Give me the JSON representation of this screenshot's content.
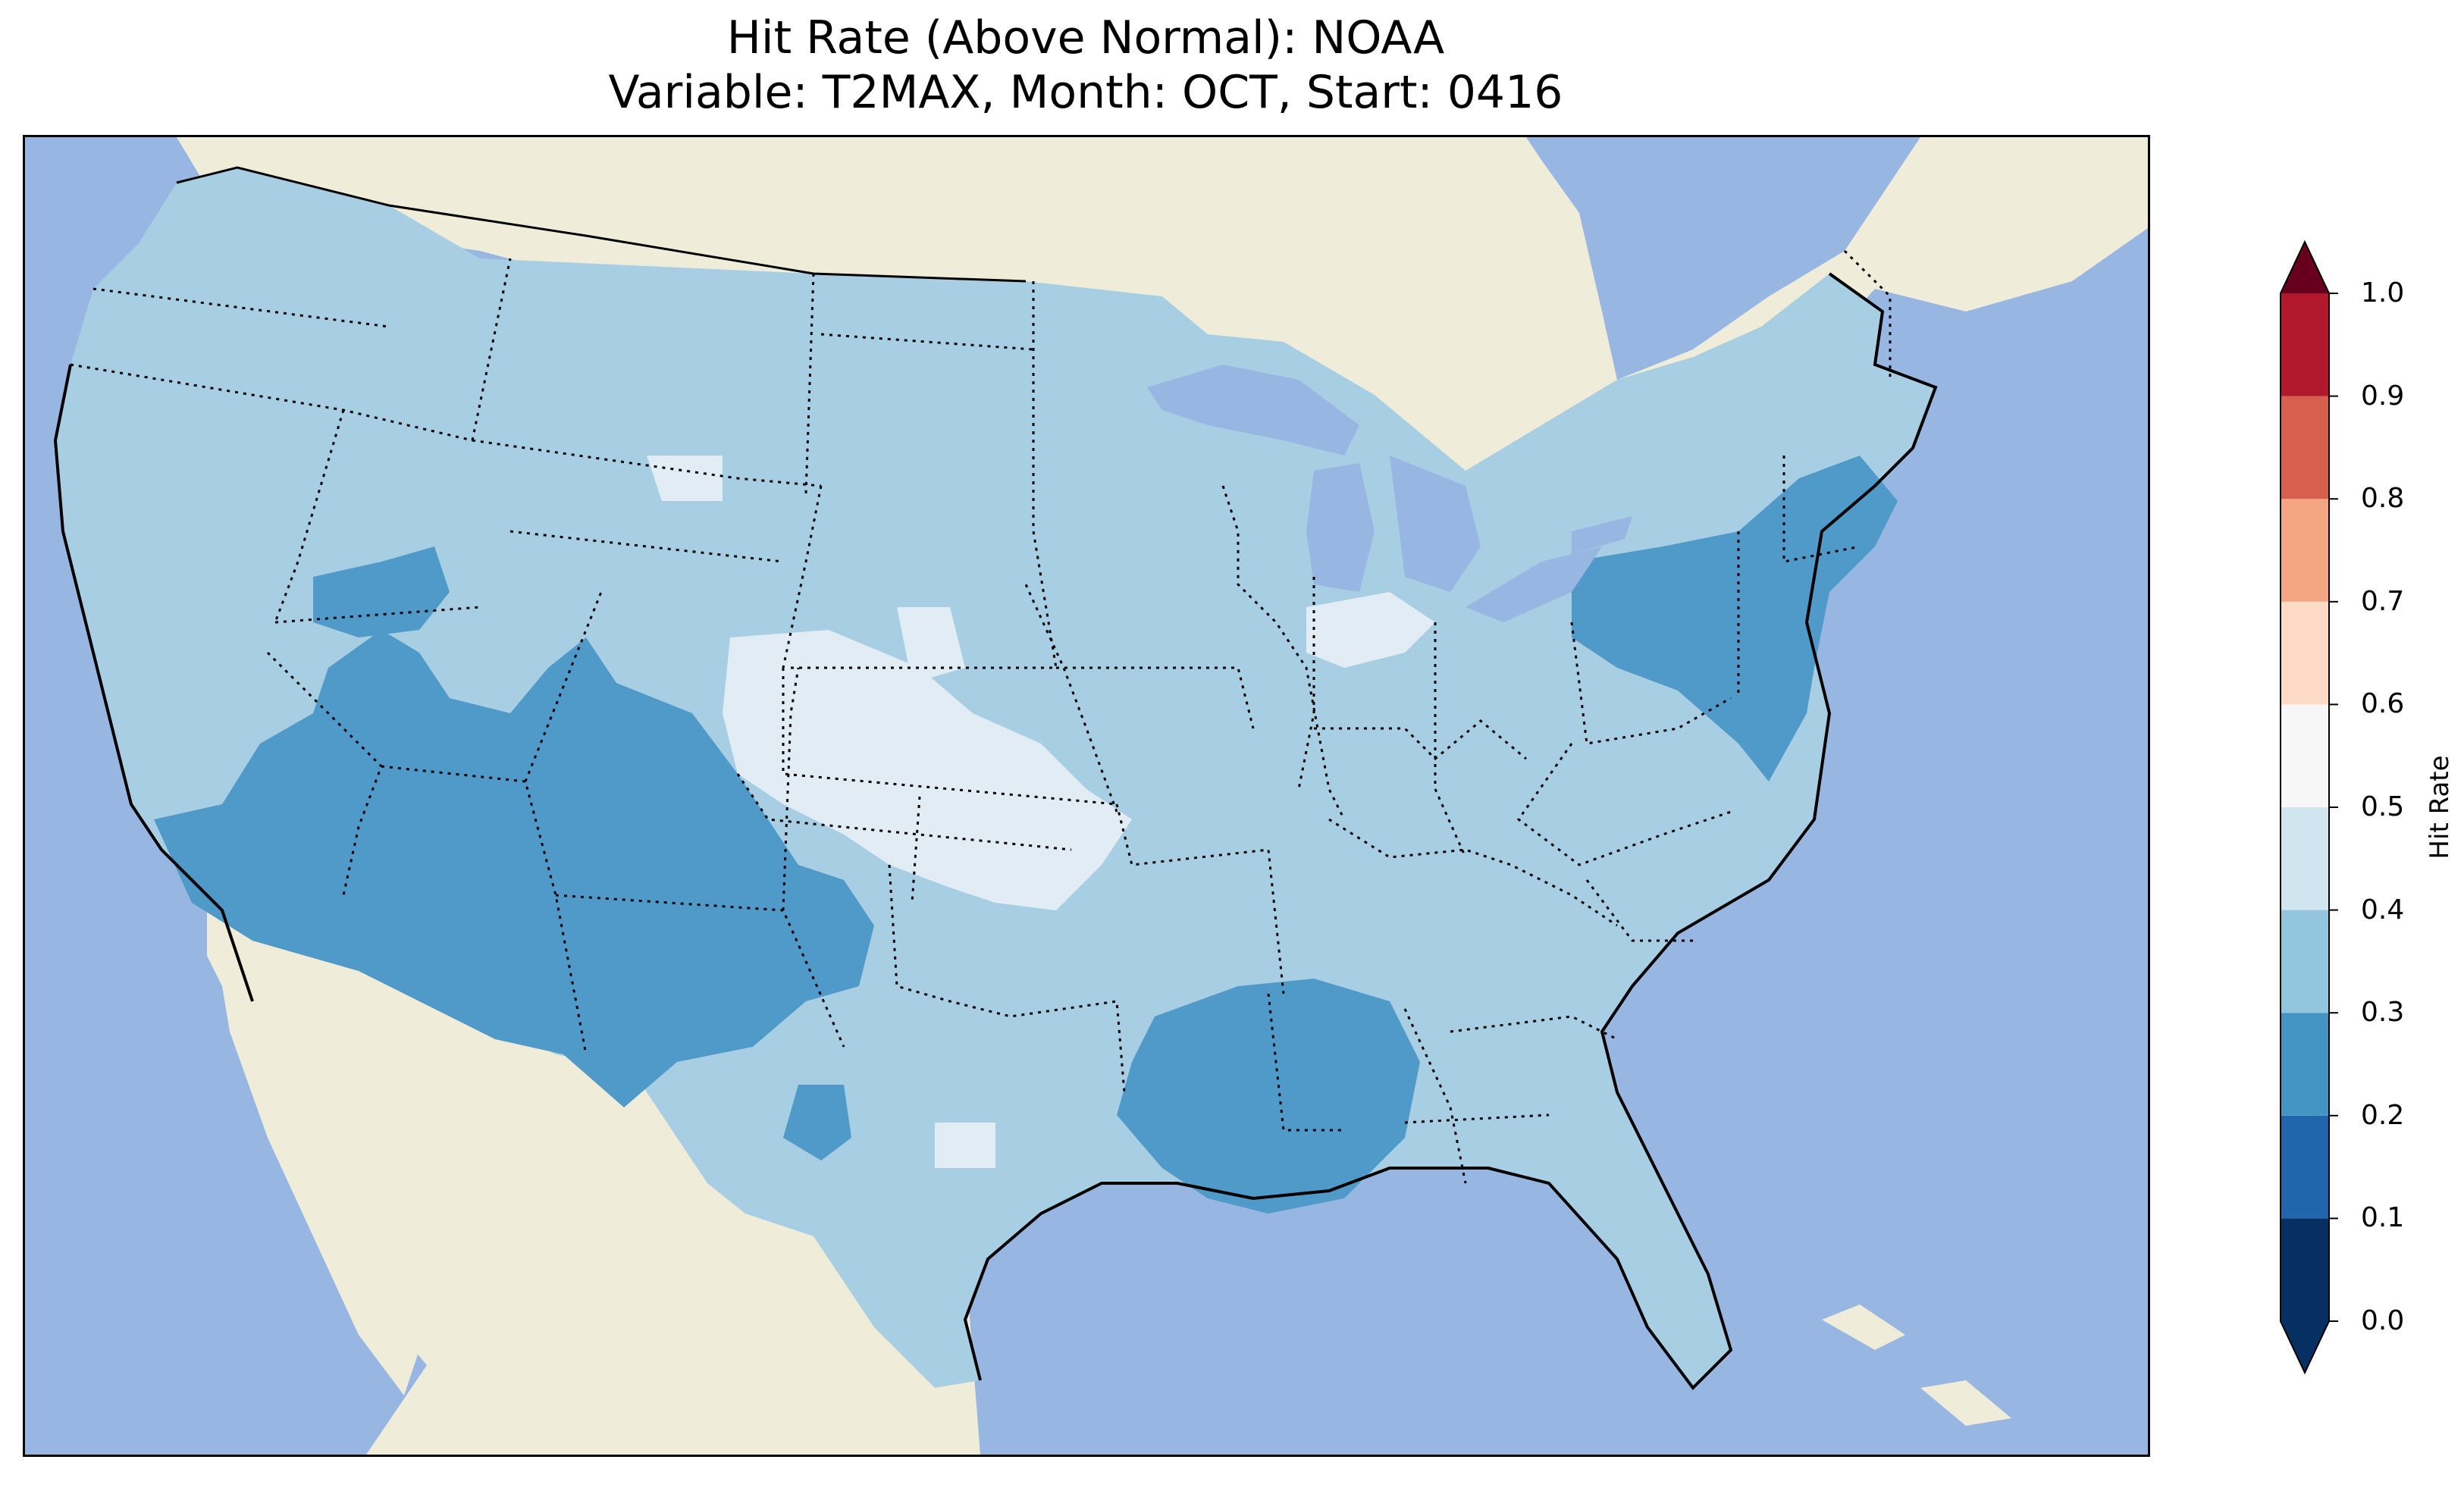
{
  "title": {
    "line1": "Hit Rate (Above Normal): NOAA",
    "line2": "Variable: T2MAX, Month: OCT, Start: 0416"
  },
  "colorbar": {
    "label": "Hit Rate",
    "extend": "both",
    "ticks": [
      "0.0",
      "0.1",
      "0.2",
      "0.3",
      "0.4",
      "0.5",
      "0.6",
      "0.7",
      "0.8",
      "0.9",
      "1.0"
    ],
    "bins": [
      {
        "range": [
          0.0,
          0.1
        ],
        "color": "#053061"
      },
      {
        "range": [
          0.1,
          0.2
        ],
        "color": "#2166ac"
      },
      {
        "range": [
          0.2,
          0.3
        ],
        "color": "#4393c3"
      },
      {
        "range": [
          0.3,
          0.4
        ],
        "color": "#92c5de"
      },
      {
        "range": [
          0.4,
          0.5
        ],
        "color": "#d1e5f0"
      },
      {
        "range": [
          0.5,
          0.6
        ],
        "color": "#f7f7f7"
      },
      {
        "range": [
          0.6,
          0.7
        ],
        "color": "#fddbc7"
      },
      {
        "range": [
          0.7,
          0.8
        ],
        "color": "#f4a582"
      },
      {
        "range": [
          0.8,
          0.9
        ],
        "color": "#d6604d"
      },
      {
        "range": [
          0.9,
          1.0
        ],
        "color": "#b2182b"
      }
    ],
    "under_color": "#053061",
    "over_color": "#67001f"
  },
  "map": {
    "region": "Contiguous United States",
    "ocean_color": "#97b6e1",
    "land_color": "#efedd9",
    "field_colors": {
      "0.2-0.3": "#509ac9",
      "0.3-0.4": "#a7cee2",
      "0.4-0.5": "#e1ecf4"
    }
  }
}
